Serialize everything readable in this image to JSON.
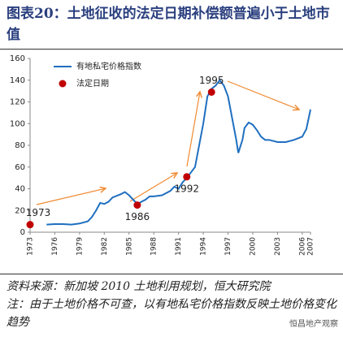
{
  "title": "图表20：土地征收的法定日期补偿额普遍小于土地市值",
  "chart_data": {
    "type": "line",
    "xlim": [
      1973,
      2007
    ],
    "xticks": [
      1973,
      1976,
      1979,
      1982,
      1985,
      1988,
      1991,
      1994,
      1997,
      2000,
      2003,
      2006,
      2007
    ],
    "ylim": [
      0,
      160
    ],
    "yticks": [
      0,
      20,
      40,
      60,
      80,
      100,
      120,
      140,
      160
    ],
    "legend": "top-left",
    "series": [
      {
        "name": "有地私宅价格指数",
        "type": "line",
        "color": "#1f6fc0",
        "x": [
          1975,
          1976,
          1977,
          1978,
          1979,
          1980,
          1980.5,
          1981,
          1981.5,
          1982,
          1982.5,
          1983,
          1984,
          1984.5,
          1985,
          1985.5,
          1986,
          1986.5,
          1987,
          1987.5,
          1988,
          1989,
          1990,
          1990.5,
          1991,
          1991.5,
          1992,
          1992.5,
          1993,
          1993.5,
          1994,
          1994.5,
          1995,
          1995.5,
          1996,
          1996.5,
          1997,
          1997.5,
          1998,
          1998.25,
          1998.75,
          1999,
          1999.5,
          2000,
          2000.5,
          2001,
          2001.5,
          2002,
          2003,
          2004,
          2005,
          2006,
          2006.5,
          2007
        ],
        "values": [
          7,
          7.5,
          7.5,
          7,
          8,
          10,
          14,
          20,
          27,
          26,
          28,
          32,
          35,
          37,
          34,
          30,
          26,
          28,
          30,
          33,
          33,
          34,
          38,
          42,
          40,
          46,
          50,
          55,
          60,
          80,
          100,
          125,
          132,
          135,
          140,
          135,
          125,
          105,
          85,
          73,
          85,
          96,
          101,
          99,
          94,
          88,
          85,
          85,
          83,
          83,
          85,
          88,
          95,
          113
        ]
      },
      {
        "name": "法定日期",
        "type": "scatter",
        "color": "#c00000",
        "x": [
          1973,
          1986,
          1992,
          1995
        ],
        "values": [
          7,
          25,
          51,
          129
        ]
      }
    ]
  },
  "source": "资料来源：新加坡 2010 土地利用规划，恒大研究院",
  "note": "注：由于土地价格不可查，以有地私宅价格指数反映土地价格变化趋势",
  "watermark": "恒昌地产观察"
}
